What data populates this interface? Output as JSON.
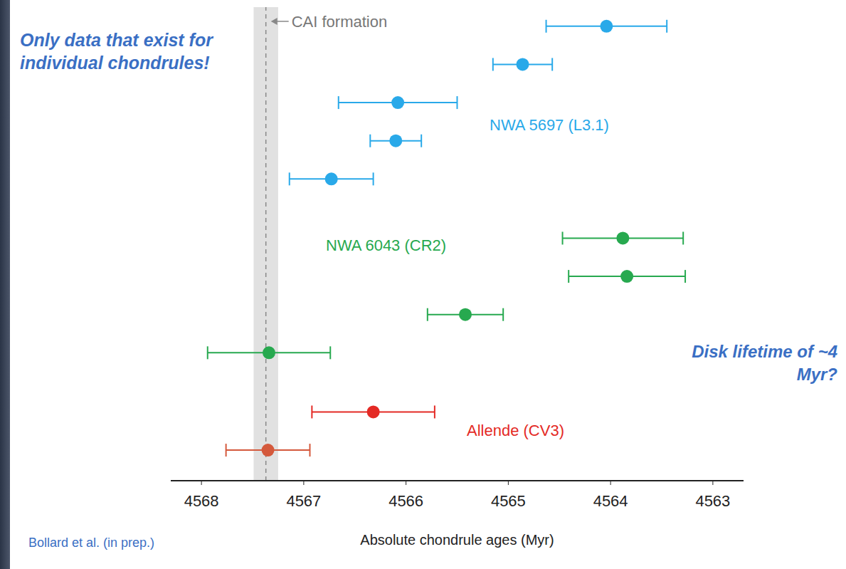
{
  "chart_data": {
    "type": "scatter",
    "x_label": "Absolute chondrule ages (Myr)",
    "xlim": [
      4568.3,
      4562.7
    ],
    "xticks": [
      4568,
      4567,
      4566,
      4565,
      4564,
      4563
    ],
    "tick_labels": "x",
    "grid": false,
    "marker": "circle",
    "series": [
      {
        "name": "NWA 5697 (L3.1)",
        "color": "#29a9e9",
        "values": [
          4564.04,
          4564.86,
          4566.08,
          4566.1,
          4566.73
        ],
        "errors": [
          0.59,
          0.29,
          0.58,
          0.25,
          0.41
        ]
      },
      {
        "name": "NWA 6043 (CR2)",
        "color": "#27a94f",
        "values": [
          4563.88,
          4563.84,
          4565.42,
          4567.34
        ],
        "errors": [
          0.59,
          0.57,
          0.37,
          0.6
        ]
      },
      {
        "name": "Allende (CV3)",
        "colors": [
          "#e42a25",
          "#d4593c"
        ],
        "values": [
          4566.32,
          4567.35
        ],
        "errors": [
          0.6,
          0.41
        ]
      }
    ],
    "reference_band": {
      "label": "CAI formation",
      "value": 4567.37,
      "uncertainty": 0.12
    },
    "annotations": [
      "Only data that exist for individual chondrules!",
      "Disk lifetime of ~4 Myr?"
    ],
    "source": "Bollard et al. (in prep.)"
  }
}
